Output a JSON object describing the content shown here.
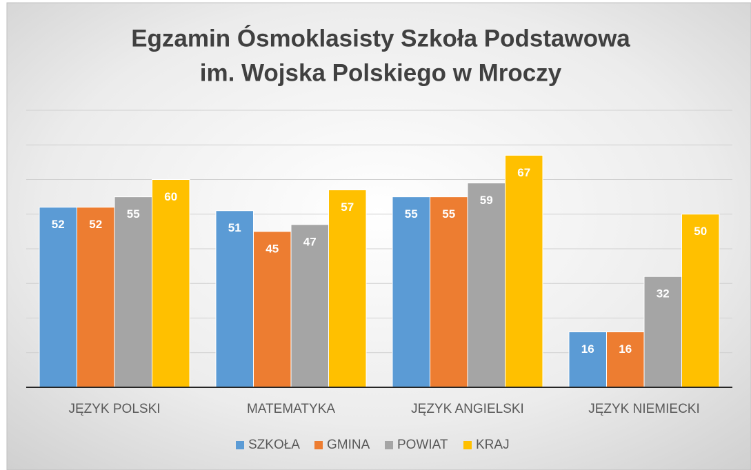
{
  "chart_data": {
    "type": "bar",
    "title": [
      "Egzamin Ósmoklasisty Szkoła Podstawowa",
      "im. Wojska Polskiego w Mroczy"
    ],
    "categories": [
      "JĘZYK POLSKI",
      "MATEMATYKA",
      "JĘZYK ANGIELSKI",
      "JĘZYK NIEMIECKI"
    ],
    "series": [
      {
        "name": "SZKOŁA",
        "color": "#5b9bd5",
        "values": [
          52,
          51,
          55,
          16
        ]
      },
      {
        "name": "GMINA",
        "color": "#ed7d31",
        "values": [
          52,
          45,
          55,
          16
        ]
      },
      {
        "name": "POWIAT",
        "color": "#a5a5a5",
        "values": [
          55,
          47,
          59,
          32
        ]
      },
      {
        "name": "KRAJ",
        "color": "#ffc000",
        "values": [
          60,
          57,
          67,
          50
        ]
      }
    ],
    "ylim": [
      0,
      80
    ],
    "yticks": [
      0,
      10,
      20,
      30,
      40,
      50,
      60,
      70,
      80
    ],
    "grid": true,
    "legend": "bottom"
  }
}
